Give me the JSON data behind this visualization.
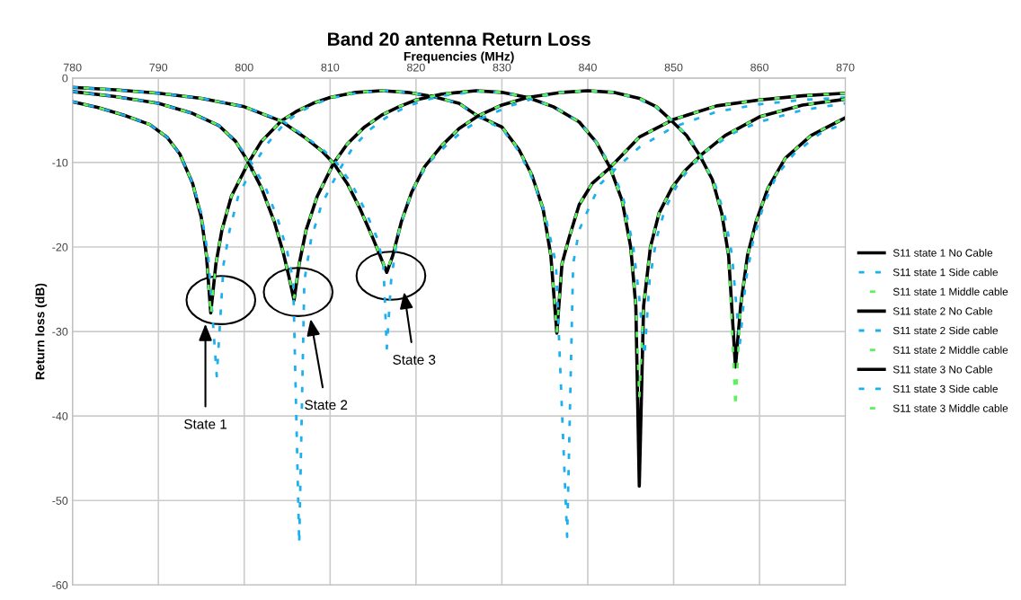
{
  "chart_data": {
    "type": "line",
    "title": "Band 20 antenna Return Loss",
    "xlabel": "Frequencies (MHz)",
    "ylabel": "Return loss (dB)",
    "xlim": [
      780,
      870
    ],
    "xticks": [
      780,
      790,
      800,
      810,
      820,
      830,
      840,
      850,
      860,
      870
    ],
    "ylim": [
      -60,
      0
    ],
    "yticks": [
      0,
      -10,
      -20,
      -30,
      -40,
      -50,
      -60
    ],
    "grid": true,
    "legend": "right",
    "marker": "none",
    "annotations": [
      "State 1",
      "State 2",
      "State 3"
    ],
    "series": [
      {
        "name": "S11 state 1 No Cable",
        "color": "#000000",
        "line_style": "solid",
        "x": [
          780,
          783,
          786,
          789,
          791,
          792.5,
          794,
          795,
          795.6,
          796.1,
          796.7,
          797.4,
          798.5,
          800.5,
          802,
          804.3,
          806,
          808,
          810,
          813,
          816,
          819,
          822,
          825,
          827.2,
          830,
          832,
          833.5,
          834.8,
          835.7,
          836.4,
          837,
          837.8,
          839,
          840.5,
          842.6,
          846,
          850,
          855,
          860,
          865,
          870
        ],
        "values": [
          -2.8,
          -3.5,
          -4.4,
          -5.5,
          -7.0,
          -9.0,
          -12.5,
          -16.5,
          -21,
          -27.8,
          -22,
          -18,
          -14,
          -10,
          -7.5,
          -5.1,
          -4,
          -3,
          -2.3,
          -1.7,
          -1.5,
          -1.7,
          -2.2,
          -3.0,
          -4.5,
          -5.8,
          -8.5,
          -11.5,
          -15.5,
          -21,
          -30.2,
          -22,
          -19,
          -15,
          -12.5,
          -10.6,
          -7.0,
          -4.9,
          -3.3,
          -2.6,
          -2.1,
          -1.8
        ]
      },
      {
        "name": "S11 state 1 Side cable",
        "color": "#1cb0ee",
        "line_style": "dashed",
        "x": [
          780,
          783,
          786,
          789,
          791,
          792.5,
          794,
          795,
          795.8,
          796.8,
          797.6,
          798.3,
          799.3,
          801,
          802.5,
          804.5,
          806,
          808,
          810,
          813,
          816,
          819,
          822,
          825,
          827.2,
          830,
          832,
          833.5,
          835,
          836.3,
          837.6,
          838.3,
          839,
          840.3,
          841.5,
          843.5,
          846,
          850,
          855,
          860,
          865,
          870
        ],
        "values": [
          -2.8,
          -3.5,
          -4.4,
          -5.5,
          -7.0,
          -9.0,
          -12.5,
          -16,
          -21,
          -35.3,
          -22,
          -18,
          -14,
          -10.5,
          -8,
          -5.6,
          -4.3,
          -3.2,
          -2.4,
          -1.8,
          -1.5,
          -1.7,
          -2.2,
          -3.0,
          -4.6,
          -6.0,
          -8.7,
          -11.8,
          -16,
          -22,
          -54.3,
          -22,
          -18,
          -15,
          -12.5,
          -10.5,
          -8.2,
          -5.8,
          -4.0,
          -3.1,
          -2.6,
          -2.3
        ]
      },
      {
        "name": "S11 state 1 Middle cable",
        "color": "#5ef05e",
        "line_style": "dashed",
        "x": [
          780,
          783,
          786,
          789,
          791,
          792.5,
          794,
          795,
          795.6,
          796.1,
          796.7,
          797.4,
          798.5,
          800.5,
          802,
          804.3,
          806,
          808,
          810,
          813,
          816,
          819,
          822,
          825,
          827.2,
          830,
          832,
          833.5,
          834.8,
          835.7,
          836.4,
          837,
          837.8,
          839,
          840.5,
          842.6,
          846,
          850,
          855,
          860,
          865,
          870
        ],
        "values": [
          -2.8,
          -3.5,
          -4.4,
          -5.5,
          -7.0,
          -9.0,
          -12.5,
          -16.5,
          -21,
          -28.0,
          -22,
          -18,
          -14,
          -10,
          -7.5,
          -5.1,
          -4,
          -3,
          -2.3,
          -1.7,
          -1.5,
          -1.7,
          -2.2,
          -3.0,
          -4.5,
          -5.8,
          -8.5,
          -11.5,
          -15.5,
          -21,
          -30.0,
          -22,
          -19,
          -15,
          -12.5,
          -10.6,
          -7.0,
          -4.9,
          -3.3,
          -2.6,
          -2.1,
          -1.8
        ]
      },
      {
        "name": "S11 state 2 No Cable",
        "color": "#000000",
        "line_style": "solid",
        "x": [
          780,
          785,
          790,
          794,
          797,
          799,
          800.5,
          802,
          803.5,
          804.5,
          805.2,
          805.8,
          806.4,
          807.2,
          808.5,
          810.4,
          812,
          814,
          816,
          818,
          820,
          823,
          827,
          830,
          833,
          836,
          839,
          841,
          842.6,
          844,
          845,
          845.6,
          846,
          846.5,
          847.3,
          848.3,
          849.8,
          851.3,
          853.2,
          856,
          860,
          865,
          870
        ],
        "values": [
          -1.6,
          -2.2,
          -3.0,
          -4.2,
          -5.6,
          -7.5,
          -10,
          -13,
          -17,
          -20.5,
          -23.5,
          -26.3,
          -22,
          -18,
          -14,
          -10.1,
          -7.8,
          -5.8,
          -4.4,
          -3.4,
          -2.6,
          -1.9,
          -1.5,
          -1.7,
          -2.3,
          -3.4,
          -5.2,
          -7.6,
          -10.6,
          -14.5,
          -20,
          -27,
          -48.3,
          -27,
          -20,
          -16,
          -13,
          -11,
          -9.1,
          -6.8,
          -4.6,
          -3.2,
          -2.5
        ]
      },
      {
        "name": "S11 state 2 Side cable",
        "color": "#1cb0ee",
        "line_style": "dashed",
        "x": [
          780,
          785,
          790,
          794,
          797,
          799,
          800.8,
          802.5,
          804,
          805,
          805.7,
          806.4,
          807,
          807.8,
          809,
          811,
          812.6,
          814.5,
          816.5,
          818.5,
          820.5,
          823,
          827,
          830,
          833,
          836,
          839,
          841,
          842.8,
          844.2,
          845.3,
          846,
          846.6,
          847.2,
          848,
          849,
          850.5,
          852,
          854,
          857,
          860,
          865,
          870
        ],
        "values": [
          -1.6,
          -2.2,
          -3.0,
          -4.2,
          -5.6,
          -7.5,
          -10,
          -13,
          -17,
          -20.5,
          -24,
          -55.1,
          -24,
          -19,
          -15,
          -11,
          -8.3,
          -6.2,
          -4.7,
          -3.6,
          -2.8,
          -2.1,
          -1.6,
          -1.7,
          -2.3,
          -3.4,
          -5.2,
          -7.6,
          -10.6,
          -14.5,
          -20,
          -26,
          -32.9,
          -24,
          -19,
          -15.5,
          -12.5,
          -10.5,
          -8.5,
          -6.5,
          -5.2,
          -3.8,
          -3.0
        ]
      },
      {
        "name": "S11 state 2 Middle cable",
        "color": "#5ef05e",
        "line_style": "dashed",
        "x": [
          780,
          785,
          790,
          794,
          797,
          799,
          800.5,
          802,
          803.5,
          804.5,
          805.2,
          805.8,
          806.4,
          807.2,
          808.5,
          810.4,
          812,
          814,
          816,
          818,
          820,
          823,
          827,
          830,
          833,
          836,
          839,
          841,
          842.6,
          844,
          845,
          845.6,
          846,
          846.5,
          847.3,
          848.3,
          849.8,
          851.3,
          853.2,
          856,
          860,
          865,
          870
        ],
        "values": [
          -1.6,
          -2.2,
          -3.0,
          -4.2,
          -5.6,
          -7.5,
          -10,
          -13,
          -17,
          -20.5,
          -23.5,
          -26.0,
          -22,
          -18,
          -14,
          -10.1,
          -7.8,
          -5.8,
          -4.4,
          -3.4,
          -2.6,
          -1.9,
          -1.5,
          -1.7,
          -2.3,
          -3.4,
          -5.2,
          -7.6,
          -10.6,
          -14.5,
          -20,
          -27,
          -37.8,
          -27,
          -20,
          -16,
          -13,
          -11,
          -9.1,
          -6.8,
          -4.6,
          -3.2,
          -2.5
        ]
      },
      {
        "name": "S11 state 3 No Cable",
        "color": "#000000",
        "line_style": "solid",
        "x": [
          780,
          785,
          790,
          795,
          800,
          804.3,
          807,
          809,
          810.4,
          812,
          813.5,
          815,
          816,
          816.6,
          817.3,
          818.3,
          819.5,
          821,
          823,
          825,
          827.2,
          830,
          833,
          837,
          840,
          843,
          846,
          848,
          849.6,
          851.5,
          853,
          854.5,
          855.6,
          856.4,
          857.2,
          857.8,
          858.6,
          859.6,
          861,
          863,
          866,
          870
        ],
        "values": [
          -1.1,
          -1.4,
          -1.8,
          -2.4,
          -3.4,
          -5.1,
          -7.0,
          -8.6,
          -10.1,
          -12.5,
          -15.5,
          -19,
          -21.5,
          -23.0,
          -21,
          -17,
          -13.5,
          -10.5,
          -8.0,
          -6.0,
          -4.5,
          -3.2,
          -2.3,
          -1.7,
          -1.5,
          -1.7,
          -2.4,
          -3.4,
          -4.9,
          -6.8,
          -9.1,
          -12,
          -16,
          -21,
          -34.2,
          -27,
          -21,
          -17,
          -13,
          -9.5,
          -6.8,
          -4.7
        ]
      },
      {
        "name": "S11 state 3 Side cable",
        "color": "#1cb0ee",
        "line_style": "dashed",
        "x": [
          780,
          785,
          790,
          795,
          800,
          804.5,
          807.2,
          809.3,
          810.8,
          812.5,
          814,
          815.5,
          816.2,
          816.6,
          817.1,
          817.8,
          818.8,
          820,
          821.5,
          823.5,
          825.5,
          828,
          831,
          834,
          837,
          840,
          843,
          846,
          848,
          849.8,
          851.8,
          853.3,
          854.8,
          856,
          856.8,
          857.7,
          858.4,
          859.3,
          860.5,
          862,
          864,
          867,
          870
        ],
        "values": [
          -1.1,
          -1.4,
          -1.8,
          -2.4,
          -3.4,
          -5.1,
          -7.0,
          -8.6,
          -10.1,
          -12.5,
          -15.5,
          -19,
          -22,
          -32.0,
          -24,
          -19,
          -15.5,
          -12.5,
          -10,
          -8,
          -6.2,
          -4.6,
          -3.3,
          -2.3,
          -1.7,
          -1.5,
          -1.7,
          -2.5,
          -3.5,
          -5.0,
          -7.0,
          -9.4,
          -12.5,
          -16.5,
          -21,
          -31.6,
          -24,
          -19,
          -15,
          -11.5,
          -9,
          -6.6,
          -5.3
        ]
      },
      {
        "name": "S11 state 3 Middle cable",
        "color": "#5ef05e",
        "line_style": "dashed",
        "x": [
          780,
          785,
          790,
          795,
          800,
          804.3,
          807,
          809,
          810.4,
          812,
          813.5,
          815,
          816,
          816.6,
          817.3,
          818.3,
          819.5,
          821,
          823,
          825,
          827.2,
          830,
          833,
          837,
          840,
          843,
          846,
          848,
          849.6,
          851.5,
          853,
          854.5,
          855.6,
          856.4,
          857.2,
          857.8,
          858.6,
          859.6,
          861,
          863,
          866,
          870
        ],
        "values": [
          -1.1,
          -1.4,
          -1.8,
          -2.4,
          -3.4,
          -5.1,
          -7.0,
          -8.6,
          -10.1,
          -12.5,
          -15.5,
          -19,
          -21.5,
          -22.8,
          -21,
          -17,
          -13.5,
          -10.5,
          -8.0,
          -6.0,
          -4.5,
          -3.2,
          -2.3,
          -1.7,
          -1.5,
          -1.7,
          -2.4,
          -3.4,
          -4.9,
          -6.8,
          -9.1,
          -12,
          -16,
          -21,
          -38.9,
          -27,
          -21,
          -17,
          -13,
          -9.5,
          -6.8,
          -4.7
        ]
      }
    ]
  }
}
